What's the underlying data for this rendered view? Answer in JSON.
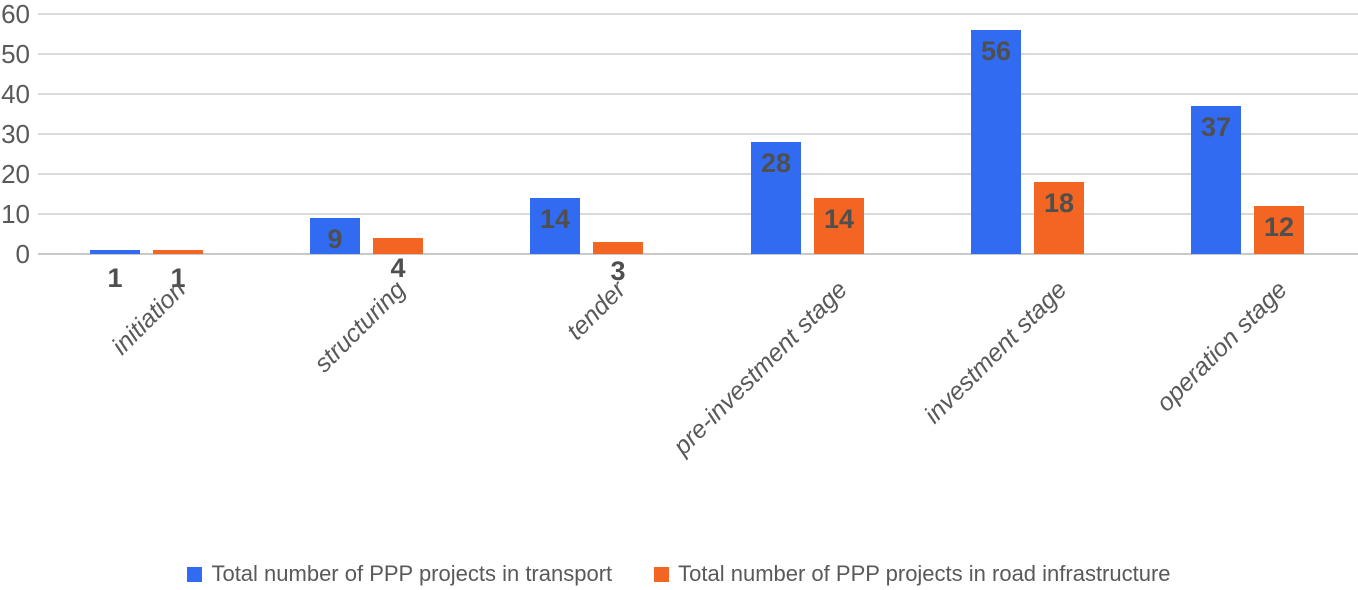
{
  "chart_data": {
    "type": "bar",
    "categories": [
      "initiation",
      "structuring",
      "tender",
      "pre-investment stage",
      "investment stage",
      "operation stage"
    ],
    "series": [
      {
        "name": "Total number of PPP projects in transport",
        "color": "#316bf2",
        "values": [
          1,
          9,
          14,
          28,
          56,
          37
        ]
      },
      {
        "name": "Total number of PPP projects in road infrastructure",
        "color": "#f26522",
        "values": [
          1,
          4,
          3,
          14,
          18,
          12
        ]
      }
    ],
    "title": "",
    "xlabel": "",
    "ylabel": "",
    "y_ticks": [
      0,
      10,
      20,
      30,
      40,
      50,
      60
    ],
    "ylim": [
      0,
      60
    ],
    "grid": true,
    "data_labels": "inside-end",
    "legend_position": "bottom",
    "category_label_rotation_deg": 45
  },
  "style": {
    "gridline_color": "#d9d9d9",
    "axis_line_color": "#c9c9c9",
    "tick_text_color": "#595959",
    "data_label_color": "#4f4f4f",
    "background": "#ffffff"
  }
}
